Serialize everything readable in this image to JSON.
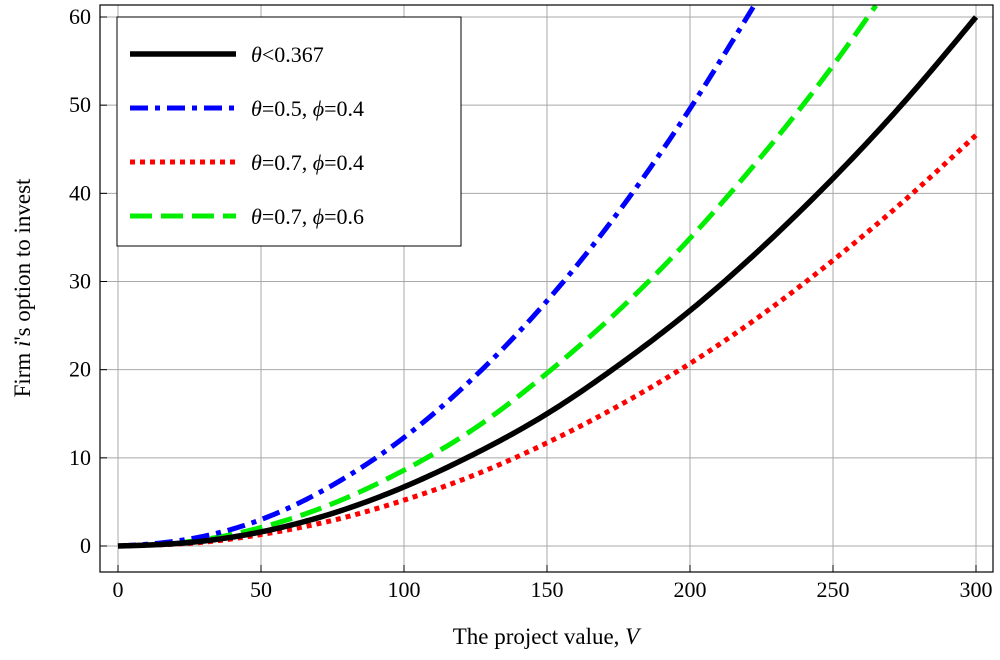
{
  "chart_data": {
    "type": "line",
    "xlabel": "The project value, ",
    "xlabel_var": "V",
    "ylabel_pre": "Firm ",
    "ylabel_var": "i",
    "ylabel_post": "'s option to invest",
    "xlim": [
      0,
      300
    ],
    "ylim": [
      0,
      60
    ],
    "xticks": [
      0,
      50,
      100,
      150,
      200,
      250,
      300
    ],
    "yticks": [
      0,
      10,
      20,
      30,
      40,
      50,
      60
    ],
    "grid": true,
    "legend_position": "top-left",
    "series": [
      {
        "name": "θ<0.367",
        "legend": [
          {
            "t": "θ",
            "i": true
          },
          {
            "t": "<0.367",
            "i": false
          }
        ],
        "color": "#000000",
        "style": "solid",
        "x": [
          0,
          10,
          25,
          50,
          75,
          100,
          125,
          150,
          175,
          200,
          225,
          250,
          275,
          300
        ],
        "y": [
          0,
          0.1,
          0.4,
          1.6,
          3.7,
          6.7,
          10.5,
          15.0,
          20.5,
          26.7,
          33.8,
          41.7,
          50.4,
          60.0
        ]
      },
      {
        "name": "θ=0.5, ϕ=0.4",
        "legend": [
          {
            "t": "θ",
            "i": true
          },
          {
            "t": "=0.5, ",
            "i": false
          },
          {
            "t": "ϕ",
            "i": true
          },
          {
            "t": "=0.4",
            "i": false
          }
        ],
        "color": "#0000ff",
        "style": "dashdot",
        "x": [
          0,
          10,
          25,
          50,
          75,
          100,
          125,
          150,
          175,
          200,
          223
        ],
        "y": [
          0,
          0.2,
          0.8,
          3.0,
          6.9,
          12.3,
          19.3,
          27.8,
          37.9,
          49.6,
          61.6
        ]
      },
      {
        "name": "θ=0.7, ϕ=0.4",
        "legend": [
          {
            "t": "θ",
            "i": true
          },
          {
            "t": "=0.7, ",
            "i": false
          },
          {
            "t": "ϕ",
            "i": true
          },
          {
            "t": "=0.4",
            "i": false
          }
        ],
        "color": "#ff0000",
        "style": "dotted",
        "x": [
          0,
          10,
          25,
          50,
          75,
          100,
          125,
          150,
          175,
          200,
          225,
          250,
          275,
          300
        ],
        "y": [
          0,
          0.1,
          0.3,
          1.3,
          2.9,
          5.2,
          8.1,
          11.7,
          15.9,
          20.7,
          26.2,
          32.4,
          39.2,
          46.6
        ]
      },
      {
        "name": "θ=0.7, ϕ=0.6",
        "legend": [
          {
            "t": "θ",
            "i": true
          },
          {
            "t": "=0.7, ",
            "i": false
          },
          {
            "t": "ϕ",
            "i": true
          },
          {
            "t": "=0.6",
            "i": false
          }
        ],
        "color": "#00ee00",
        "style": "dashed",
        "x": [
          0,
          10,
          25,
          50,
          75,
          100,
          125,
          150,
          175,
          200,
          225,
          250,
          265
        ],
        "y": [
          0,
          0.1,
          0.5,
          2.1,
          4.8,
          8.6,
          13.4,
          19.6,
          26.7,
          34.9,
          44.2,
          54.5,
          61.3
        ]
      }
    ]
  }
}
